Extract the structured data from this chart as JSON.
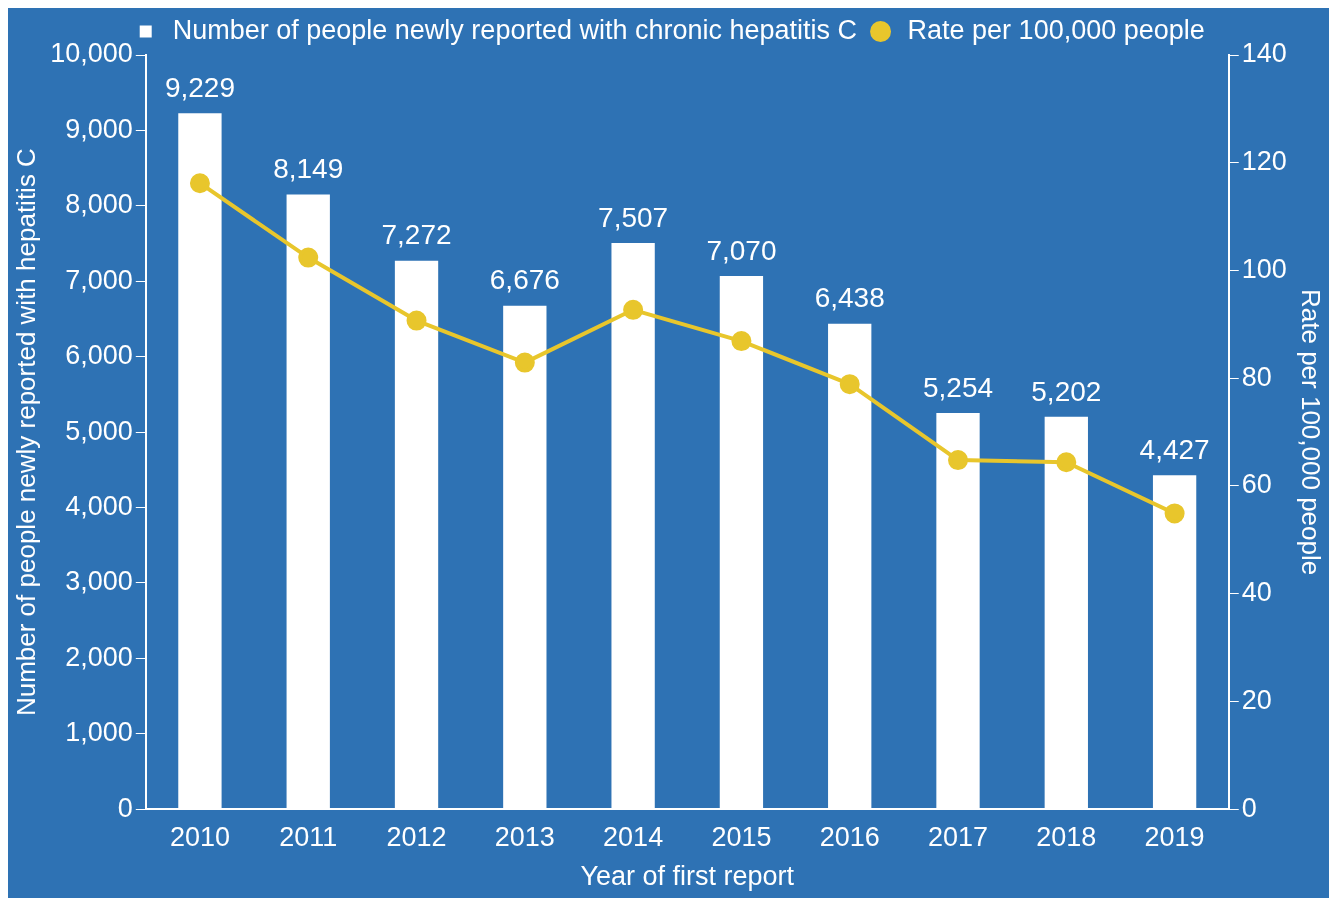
{
  "chart_data": {
    "type": "bar",
    "xlabel": "Year of first report",
    "ylabel": "Number of people newly reported with hepatitis C",
    "y2label": "Rate per 100,000 people",
    "categories": [
      "2010",
      "2011",
      "2012",
      "2013",
      "2014",
      "2015",
      "2016",
      "2017",
      "2018",
      "2019"
    ],
    "series": [
      {
        "name": "Number of people newly reported with chronic hepatitis C",
        "color": "#ffffff",
        "values": [
          9229,
          8149,
          7272,
          6676,
          7507,
          7070,
          6438,
          5254,
          5202,
          4427
        ],
        "value_labels": [
          "9,229",
          "8,149",
          "7,272",
          "6,676",
          "7,507",
          "7,070",
          "6,438",
          "5,254",
          "5,202",
          "4,427"
        ]
      },
      {
        "name": "Rate per 100,000 people",
        "type": "line",
        "axis": "y2",
        "color": "#e8c62c",
        "marker": "circle",
        "values": [
          116.2,
          102.4,
          90.7,
          82.9,
          92.7,
          86.9,
          78.9,
          64.8,
          64.4,
          54.9
        ]
      }
    ],
    "ylim": [
      0,
      10000
    ],
    "yticks": [
      {
        "value": 0,
        "label": "0"
      },
      {
        "value": 1000,
        "label": "1,000"
      },
      {
        "value": 2000,
        "label": "2,000"
      },
      {
        "value": 3000,
        "label": "3,000"
      },
      {
        "value": 4000,
        "label": "4,000"
      },
      {
        "value": 5000,
        "label": "5,000"
      },
      {
        "value": 6000,
        "label": "6,000"
      },
      {
        "value": 7000,
        "label": "7,000"
      },
      {
        "value": 8000,
        "label": "8,000"
      },
      {
        "value": 9000,
        "label": "9,000"
      },
      {
        "value": 10000,
        "label": "10,000"
      }
    ],
    "y2lim": [
      0,
      140
    ],
    "y2ticks": [
      0,
      20,
      40,
      60,
      80,
      100,
      120,
      140
    ],
    "grid": false,
    "legend": "top"
  }
}
